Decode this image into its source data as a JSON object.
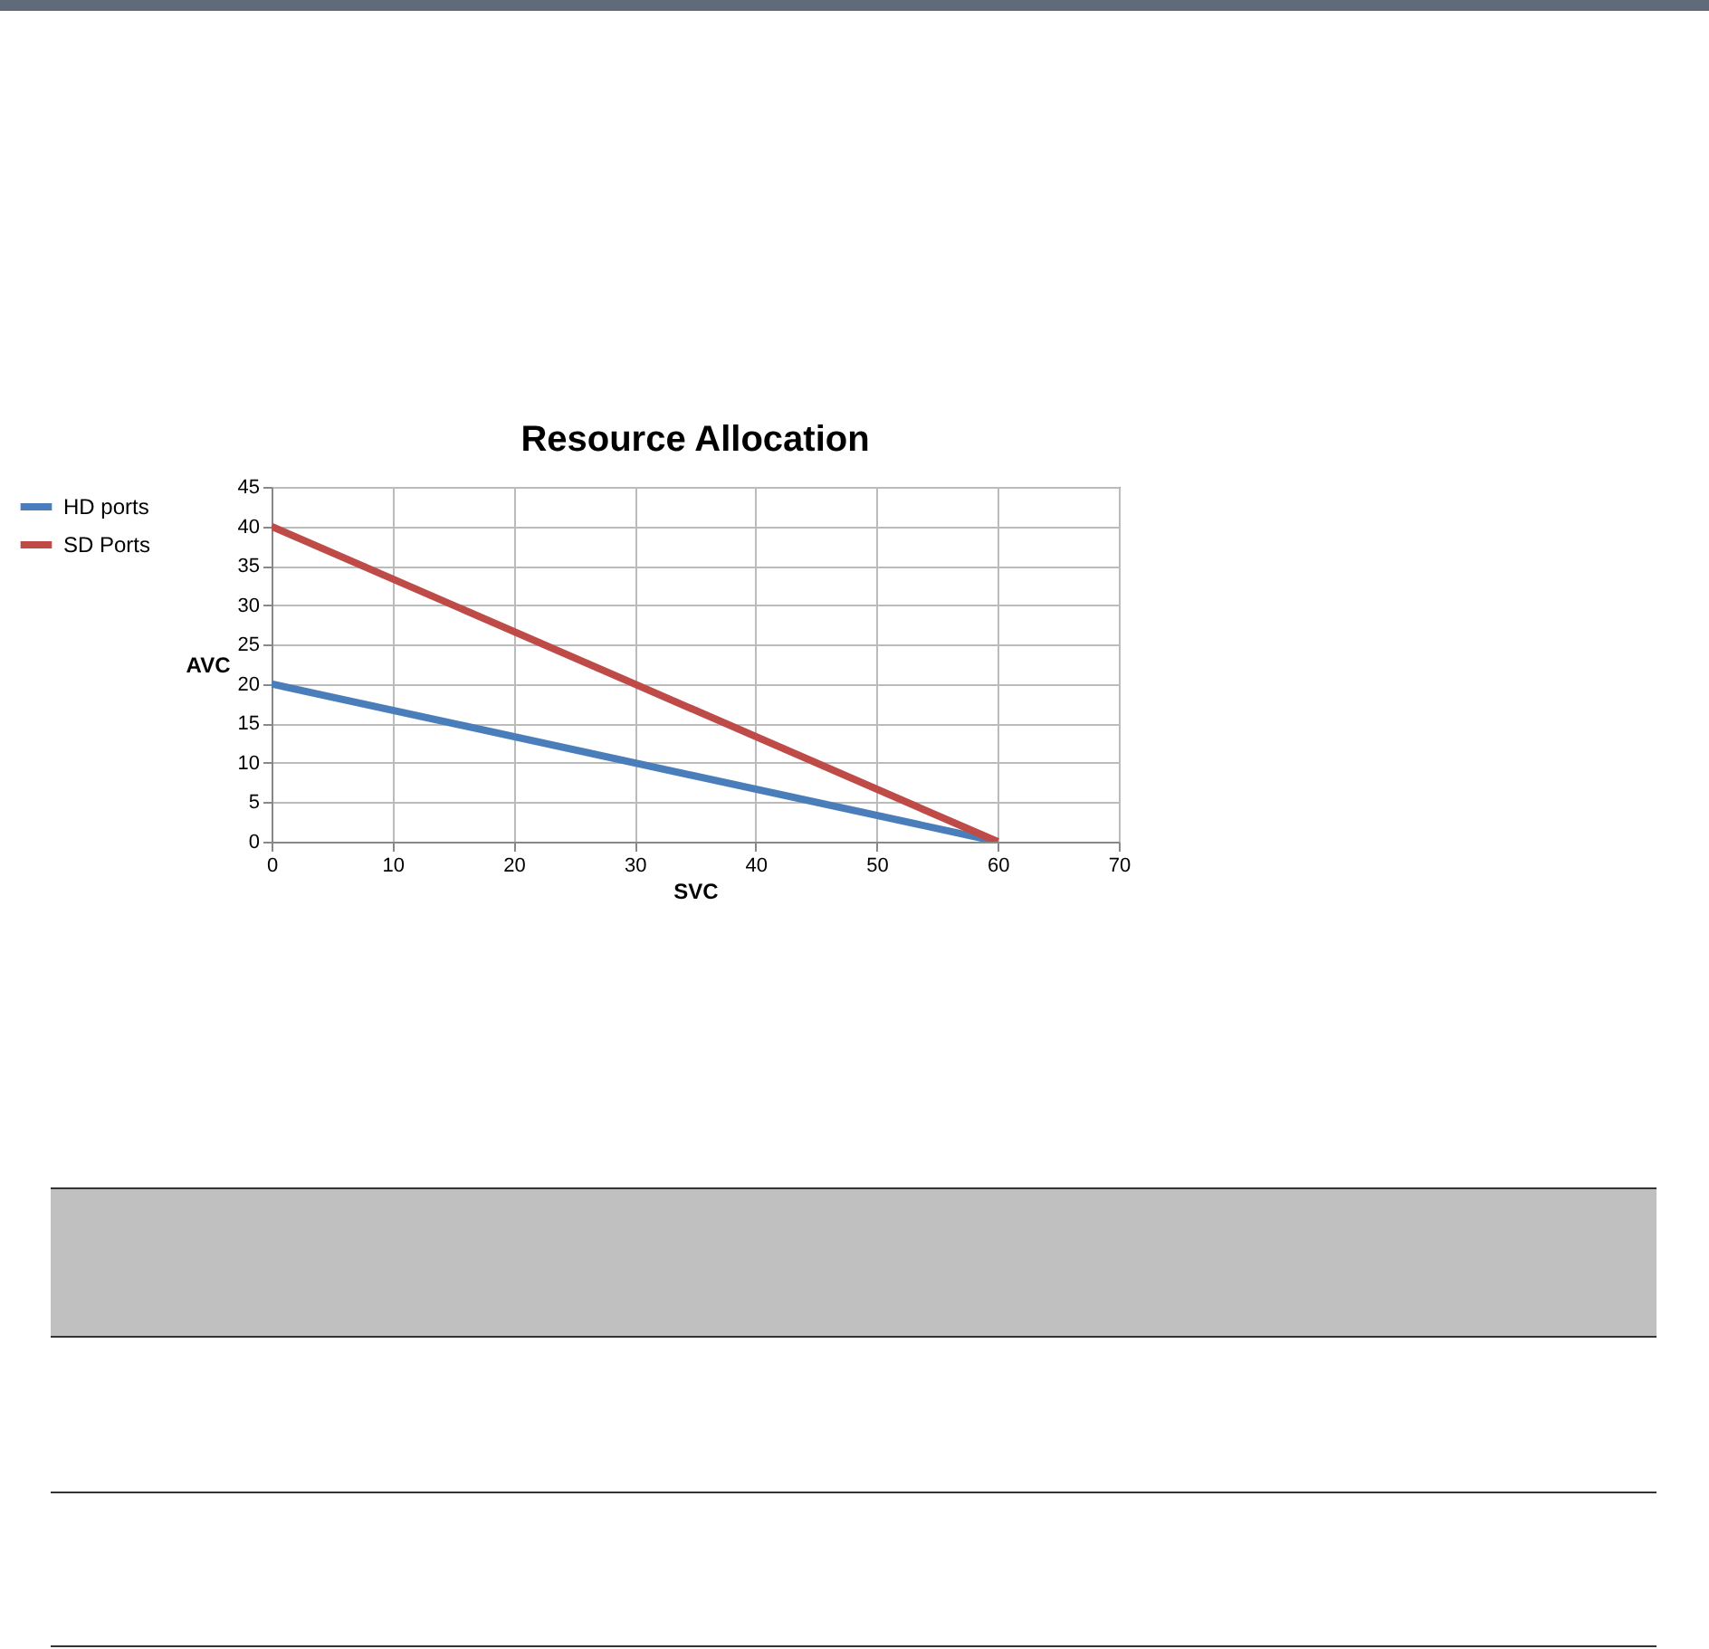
{
  "chart_data": {
    "type": "line",
    "title": "Resource Allocation",
    "xlabel": "SVC",
    "ylabel": "AVC",
    "x": [
      0,
      60
    ],
    "series": [
      {
        "name": "HD ports",
        "color": "#4a7ebb",
        "values": [
          20,
          0
        ]
      },
      {
        "name": "SD Ports",
        "color": "#be4b48",
        "values": [
          40,
          0
        ]
      }
    ],
    "xlim": [
      0,
      70
    ],
    "xticks": [
      0,
      10,
      20,
      30,
      40,
      50,
      60,
      70
    ],
    "ylim": [
      0,
      45
    ],
    "yticks": [
      0,
      5,
      10,
      15,
      20,
      25,
      30,
      35,
      40,
      45
    ],
    "grid": true,
    "legend": "left",
    "line_style": "solid"
  }
}
